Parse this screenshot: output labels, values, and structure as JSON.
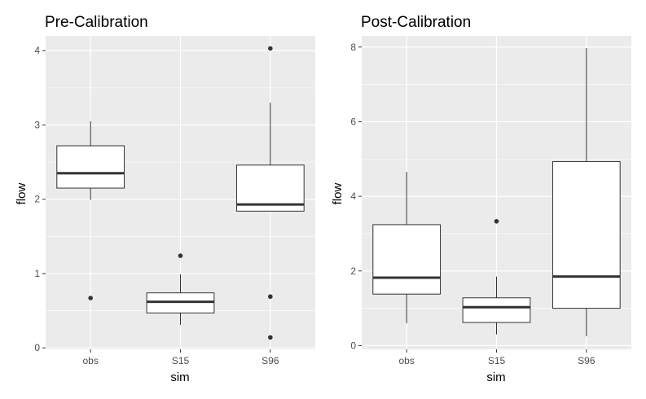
{
  "chart_data": [
    {
      "type": "boxplot",
      "title": "Pre-Calibration",
      "xlabel": "sim",
      "ylabel": "flow",
      "categories": [
        "obs",
        "S15",
        "S96"
      ],
      "ylim": [
        -0.02,
        4.2
      ],
      "yticks": [
        0,
        1,
        2,
        3,
        4
      ],
      "grid": true,
      "boxes": [
        {
          "category": "obs",
          "lower_whisker": 1.99,
          "q1": 2.15,
          "median": 2.35,
          "q3": 2.72,
          "upper_whisker": 3.05,
          "outliers": [
            0.67
          ]
        },
        {
          "category": "S15",
          "lower_whisker": 0.31,
          "q1": 0.47,
          "median": 0.62,
          "q3": 0.74,
          "upper_whisker": 0.99,
          "outliers": [
            1.24
          ]
        },
        {
          "category": "S96",
          "lower_whisker": 1.84,
          "q1": 1.84,
          "median": 1.93,
          "q3": 2.46,
          "upper_whisker": 3.3,
          "outliers": [
            4.03,
            0.69,
            0.14
          ]
        }
      ],
      "colors": {
        "panel": "#ebebeb",
        "grid": "#ffffff",
        "box_fill": "#ffffff",
        "line": "#333333"
      }
    },
    {
      "type": "boxplot",
      "title": "Post-Calibration",
      "xlabel": "sim",
      "ylabel": "flow",
      "categories": [
        "obs",
        "S15",
        "S96"
      ],
      "ylim": [
        -0.1,
        8.3
      ],
      "yticks": [
        0,
        2,
        4,
        6,
        8
      ],
      "grid": true,
      "boxes": [
        {
          "category": "obs",
          "lower_whisker": 0.6,
          "q1": 1.38,
          "median": 1.82,
          "q3": 3.24,
          "upper_whisker": 4.65,
          "outliers": []
        },
        {
          "category": "S15",
          "lower_whisker": 0.3,
          "q1": 0.62,
          "median": 1.03,
          "q3": 1.28,
          "upper_whisker": 1.85,
          "outliers": [
            3.33
          ]
        },
        {
          "category": "S96",
          "lower_whisker": 0.25,
          "q1": 1.0,
          "median": 1.85,
          "q3": 4.93,
          "upper_whisker": 7.97,
          "outliers": []
        }
      ],
      "colors": {
        "panel": "#ebebeb",
        "grid": "#ffffff",
        "box_fill": "#ffffff",
        "line": "#333333"
      }
    }
  ]
}
